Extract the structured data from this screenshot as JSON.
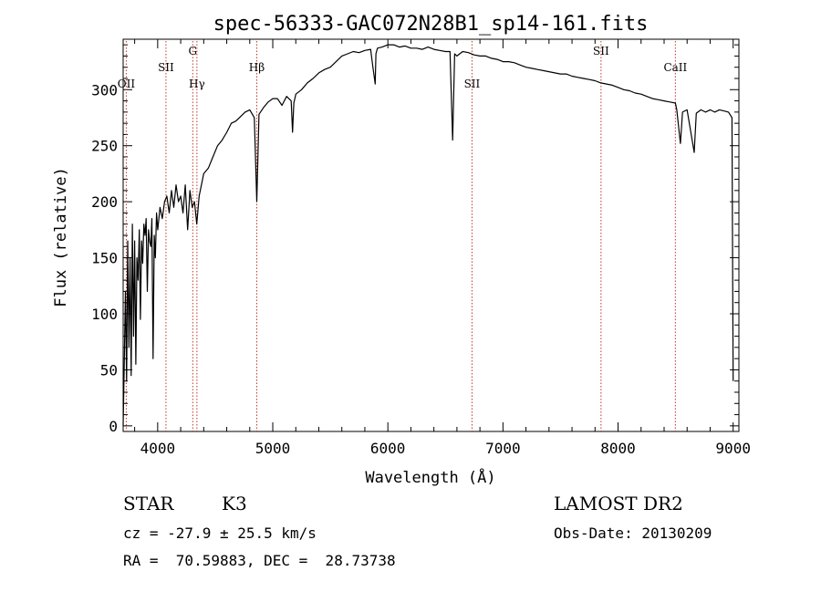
{
  "chart_data": {
    "type": "line",
    "title": "spec-56333-GAC072N28B1_sp14-161.fits",
    "xlabel": "Wavelength (Å)",
    "ylabel": "Flux (relative)",
    "xlim": [
      3700,
      9050
    ],
    "ylim": [
      -5,
      345
    ],
    "xticks": [
      4000,
      5000,
      6000,
      7000,
      8000,
      9000
    ],
    "yticks": [
      0,
      50,
      100,
      150,
      200,
      250,
      300
    ],
    "grid": false,
    "series": [
      {
        "color": "#000000",
        "x": [
          3700,
          3710,
          3720,
          3730,
          3740,
          3750,
          3760,
          3770,
          3780,
          3790,
          3800,
          3810,
          3820,
          3830,
          3840,
          3850,
          3860,
          3870,
          3880,
          3890,
          3900,
          3910,
          3920,
          3930,
          3940,
          3950,
          3960,
          3970,
          3980,
          3990,
          4000,
          4020,
          4040,
          4060,
          4080,
          4100,
          4120,
          4140,
          4160,
          4180,
          4200,
          4220,
          4240,
          4260,
          4280,
          4300,
          4320,
          4340,
          4360,
          4380,
          4400,
          4440,
          4480,
          4520,
          4560,
          4600,
          4640,
          4680,
          4720,
          4760,
          4800,
          4840,
          4861,
          4880,
          4920,
          4960,
          5000,
          5040,
          5080,
          5120,
          5160,
          5172,
          5183,
          5200,
          5250,
          5300,
          5350,
          5400,
          5450,
          5500,
          5550,
          5600,
          5650,
          5700,
          5750,
          5800,
          5850,
          5870,
          5890,
          5896,
          5910,
          5950,
          6000,
          6050,
          6100,
          6150,
          6200,
          6250,
          6300,
          6350,
          6400,
          6450,
          6500,
          6540,
          6563,
          6580,
          6600,
          6650,
          6700,
          6750,
          6800,
          6850,
          6900,
          6950,
          7000,
          7050,
          7100,
          7150,
          7200,
          7250,
          7300,
          7350,
          7400,
          7450,
          7500,
          7550,
          7600,
          7650,
          7700,
          7750,
          7800,
          7850,
          7900,
          7950,
          8000,
          8050,
          8100,
          8150,
          8200,
          8250,
          8300,
          8350,
          8400,
          8450,
          8498,
          8510,
          8542,
          8560,
          8600,
          8662,
          8680,
          8720,
          8760,
          8800,
          8840,
          8880,
          8920,
          8960,
          8990,
          9000
        ],
        "y": [
          0,
          60,
          120,
          40,
          165,
          70,
          150,
          45,
          180,
          80,
          165,
          55,
          150,
          130,
          175,
          95,
          165,
          145,
          180,
          170,
          185,
          120,
          175,
          165,
          160,
          185,
          60,
          170,
          150,
          190,
          175,
          195,
          185,
          200,
          205,
          190,
          210,
          195,
          215,
          200,
          205,
          190,
          215,
          175,
          210,
          195,
          200,
          180,
          205,
          215,
          225,
          230,
          240,
          250,
          255,
          262,
          270,
          272,
          276,
          280,
          282,
          275,
          200,
          278,
          284,
          289,
          292,
          292,
          286,
          294,
          290,
          262,
          288,
          296,
          300,
          306,
          310,
          315,
          318,
          320,
          325,
          330,
          332,
          334,
          333,
          335,
          336,
          320,
          305,
          332,
          337,
          338,
          340,
          340,
          338,
          339,
          337,
          337,
          336,
          338,
          336,
          335,
          334,
          334,
          255,
          332,
          330,
          334,
          333,
          331,
          330,
          330,
          328,
          327,
          325,
          325,
          324,
          322,
          320,
          319,
          318,
          317,
          316,
          315,
          314,
          314,
          312,
          311,
          310,
          309,
          308,
          306,
          305,
          304,
          302,
          300,
          299,
          297,
          296,
          294,
          292,
          291,
          290,
          289,
          288,
          282,
          252,
          280,
          282,
          244,
          279,
          282,
          280,
          282,
          280,
          282,
          281,
          280,
          275,
          40
        ]
      }
    ],
    "spectral_lines": [
      {
        "label": "OII",
        "x": 3727,
        "label_row": "low"
      },
      {
        "label": "SII",
        "x": 4072,
        "label_row": "mid"
      },
      {
        "label": "G",
        "x": 4305,
        "label_row": "high"
      },
      {
        "label": "Hγ",
        "x": 4341,
        "label_row": "low"
      },
      {
        "label": "Hβ",
        "x": 4861,
        "label_row": "mid"
      },
      {
        "label": "SII",
        "x": 6731,
        "label_row": "low"
      },
      {
        "label": "SII",
        "x": 7852,
        "label_row": "high"
      },
      {
        "label": "CaII",
        "x": 8498,
        "label_row": "mid"
      }
    ]
  },
  "info": {
    "class": "STAR",
    "subclass": "K3",
    "survey": "LAMOST DR2",
    "cz": "cz = -27.9 ± 25.5 km/s",
    "obs_date": "Obs-Date: 20130209",
    "coords": "RA =  70.59883, DEC =  28.73738"
  }
}
